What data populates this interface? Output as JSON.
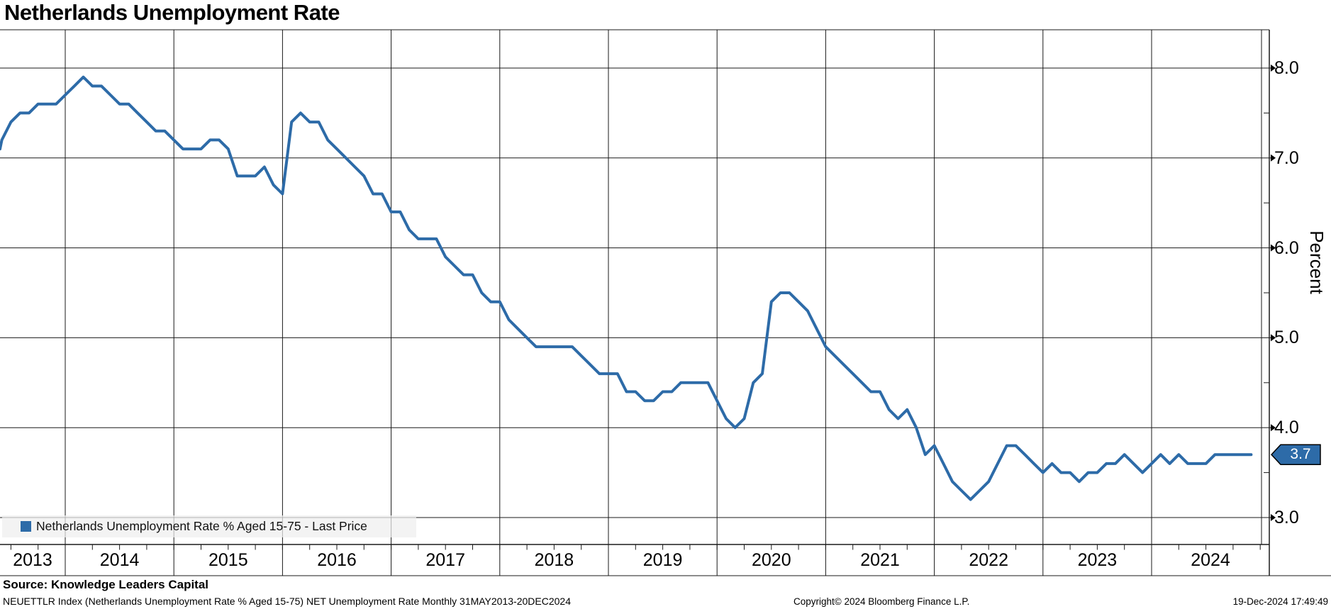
{
  "title": "Netherlands Unemployment Rate",
  "legend": {
    "label": "Netherlands Unemployment Rate % Aged 15-75 - Last Price"
  },
  "y_axis": {
    "title": "Percent",
    "major_tick_labels": [
      "8.0",
      "7.0",
      "6.0",
      "5.0",
      "4.0",
      "3.0"
    ],
    "major_tick_values": [
      8.0,
      7.0,
      6.0,
      5.0,
      4.0,
      3.0
    ],
    "minor_tick_values": [
      7.5,
      6.5,
      5.5,
      4.5,
      3.5
    ]
  },
  "x_axis": {
    "year_labels": [
      "2013",
      "2014",
      "2015",
      "2016",
      "2017",
      "2018",
      "2019",
      "2020",
      "2021",
      "2022",
      "2023",
      "2024"
    ]
  },
  "last_price_badge": {
    "value": "3.7"
  },
  "footer": {
    "source": "Source: Knowledge Leaders Capital",
    "description": "NEUETTLR Index (Netherlands Unemployment Rate % Aged 15-75) NET Unemployment Rate  Monthly 31MAY2013-20DEC2024",
    "copyright": "Copyright© 2024 Bloomberg Finance L.P.",
    "timestamp": "19-Dec-2024 17:49:49"
  },
  "colors": {
    "line": "#2d6ba8",
    "badge_bg": "#2d6ba8",
    "badge_border": "#000000",
    "grid": "#1a1a1a",
    "legend_swatch": "#2d6ba8"
  },
  "chart_data": {
    "type": "line",
    "series_name": "Netherlands Unemployment Rate % Aged 15-75 - Last Price",
    "unit": "percent",
    "frequency": "monthly",
    "start_month": "2013-05",
    "end_month": "2024-12",
    "ylim": [
      2.7,
      8.4
    ],
    "grid": true,
    "legend_position": "bottom-left",
    "last_value": 3.7,
    "values": [
      7.1,
      7.2,
      7.4,
      7.5,
      7.5,
      7.6,
      7.6,
      7.6,
      7.7,
      7.8,
      7.9,
      7.8,
      7.8,
      7.7,
      7.6,
      7.6,
      7.5,
      7.4,
      7.3,
      7.3,
      7.2,
      7.1,
      7.1,
      7.1,
      7.2,
      7.2,
      7.1,
      6.8,
      6.8,
      6.8,
      6.9,
      6.7,
      6.6,
      7.4,
      7.5,
      7.4,
      7.4,
      7.2,
      7.1,
      7.0,
      6.9,
      6.8,
      6.6,
      6.6,
      6.4,
      6.4,
      6.2,
      6.1,
      6.1,
      6.1,
      5.9,
      5.8,
      5.7,
      5.7,
      5.5,
      5.4,
      5.4,
      5.2,
      5.1,
      5.0,
      4.9,
      4.9,
      4.9,
      4.9,
      4.9,
      4.8,
      4.7,
      4.6,
      4.6,
      4.6,
      4.4,
      4.4,
      4.3,
      4.3,
      4.4,
      4.4,
      4.5,
      4.5,
      4.5,
      4.5,
      4.3,
      4.1,
      4.0,
      4.1,
      4.5,
      4.6,
      5.4,
      5.5,
      5.5,
      5.4,
      5.3,
      5.1,
      4.9,
      4.8,
      4.7,
      4.6,
      4.5,
      4.4,
      4.4,
      4.2,
      4.1,
      4.2,
      4.0,
      3.7,
      3.8,
      3.6,
      3.4,
      3.3,
      3.2,
      3.3,
      3.4,
      3.6,
      3.8,
      3.8,
      3.7,
      3.6,
      3.5,
      3.6,
      3.5,
      3.5,
      3.4,
      3.5,
      3.5,
      3.6,
      3.6,
      3.7,
      3.6,
      3.5,
      3.6,
      3.7,
      3.6,
      3.7,
      3.6,
      3.6,
      3.6,
      3.7,
      3.7,
      3.7,
      3.7,
      3.7
    ]
  }
}
